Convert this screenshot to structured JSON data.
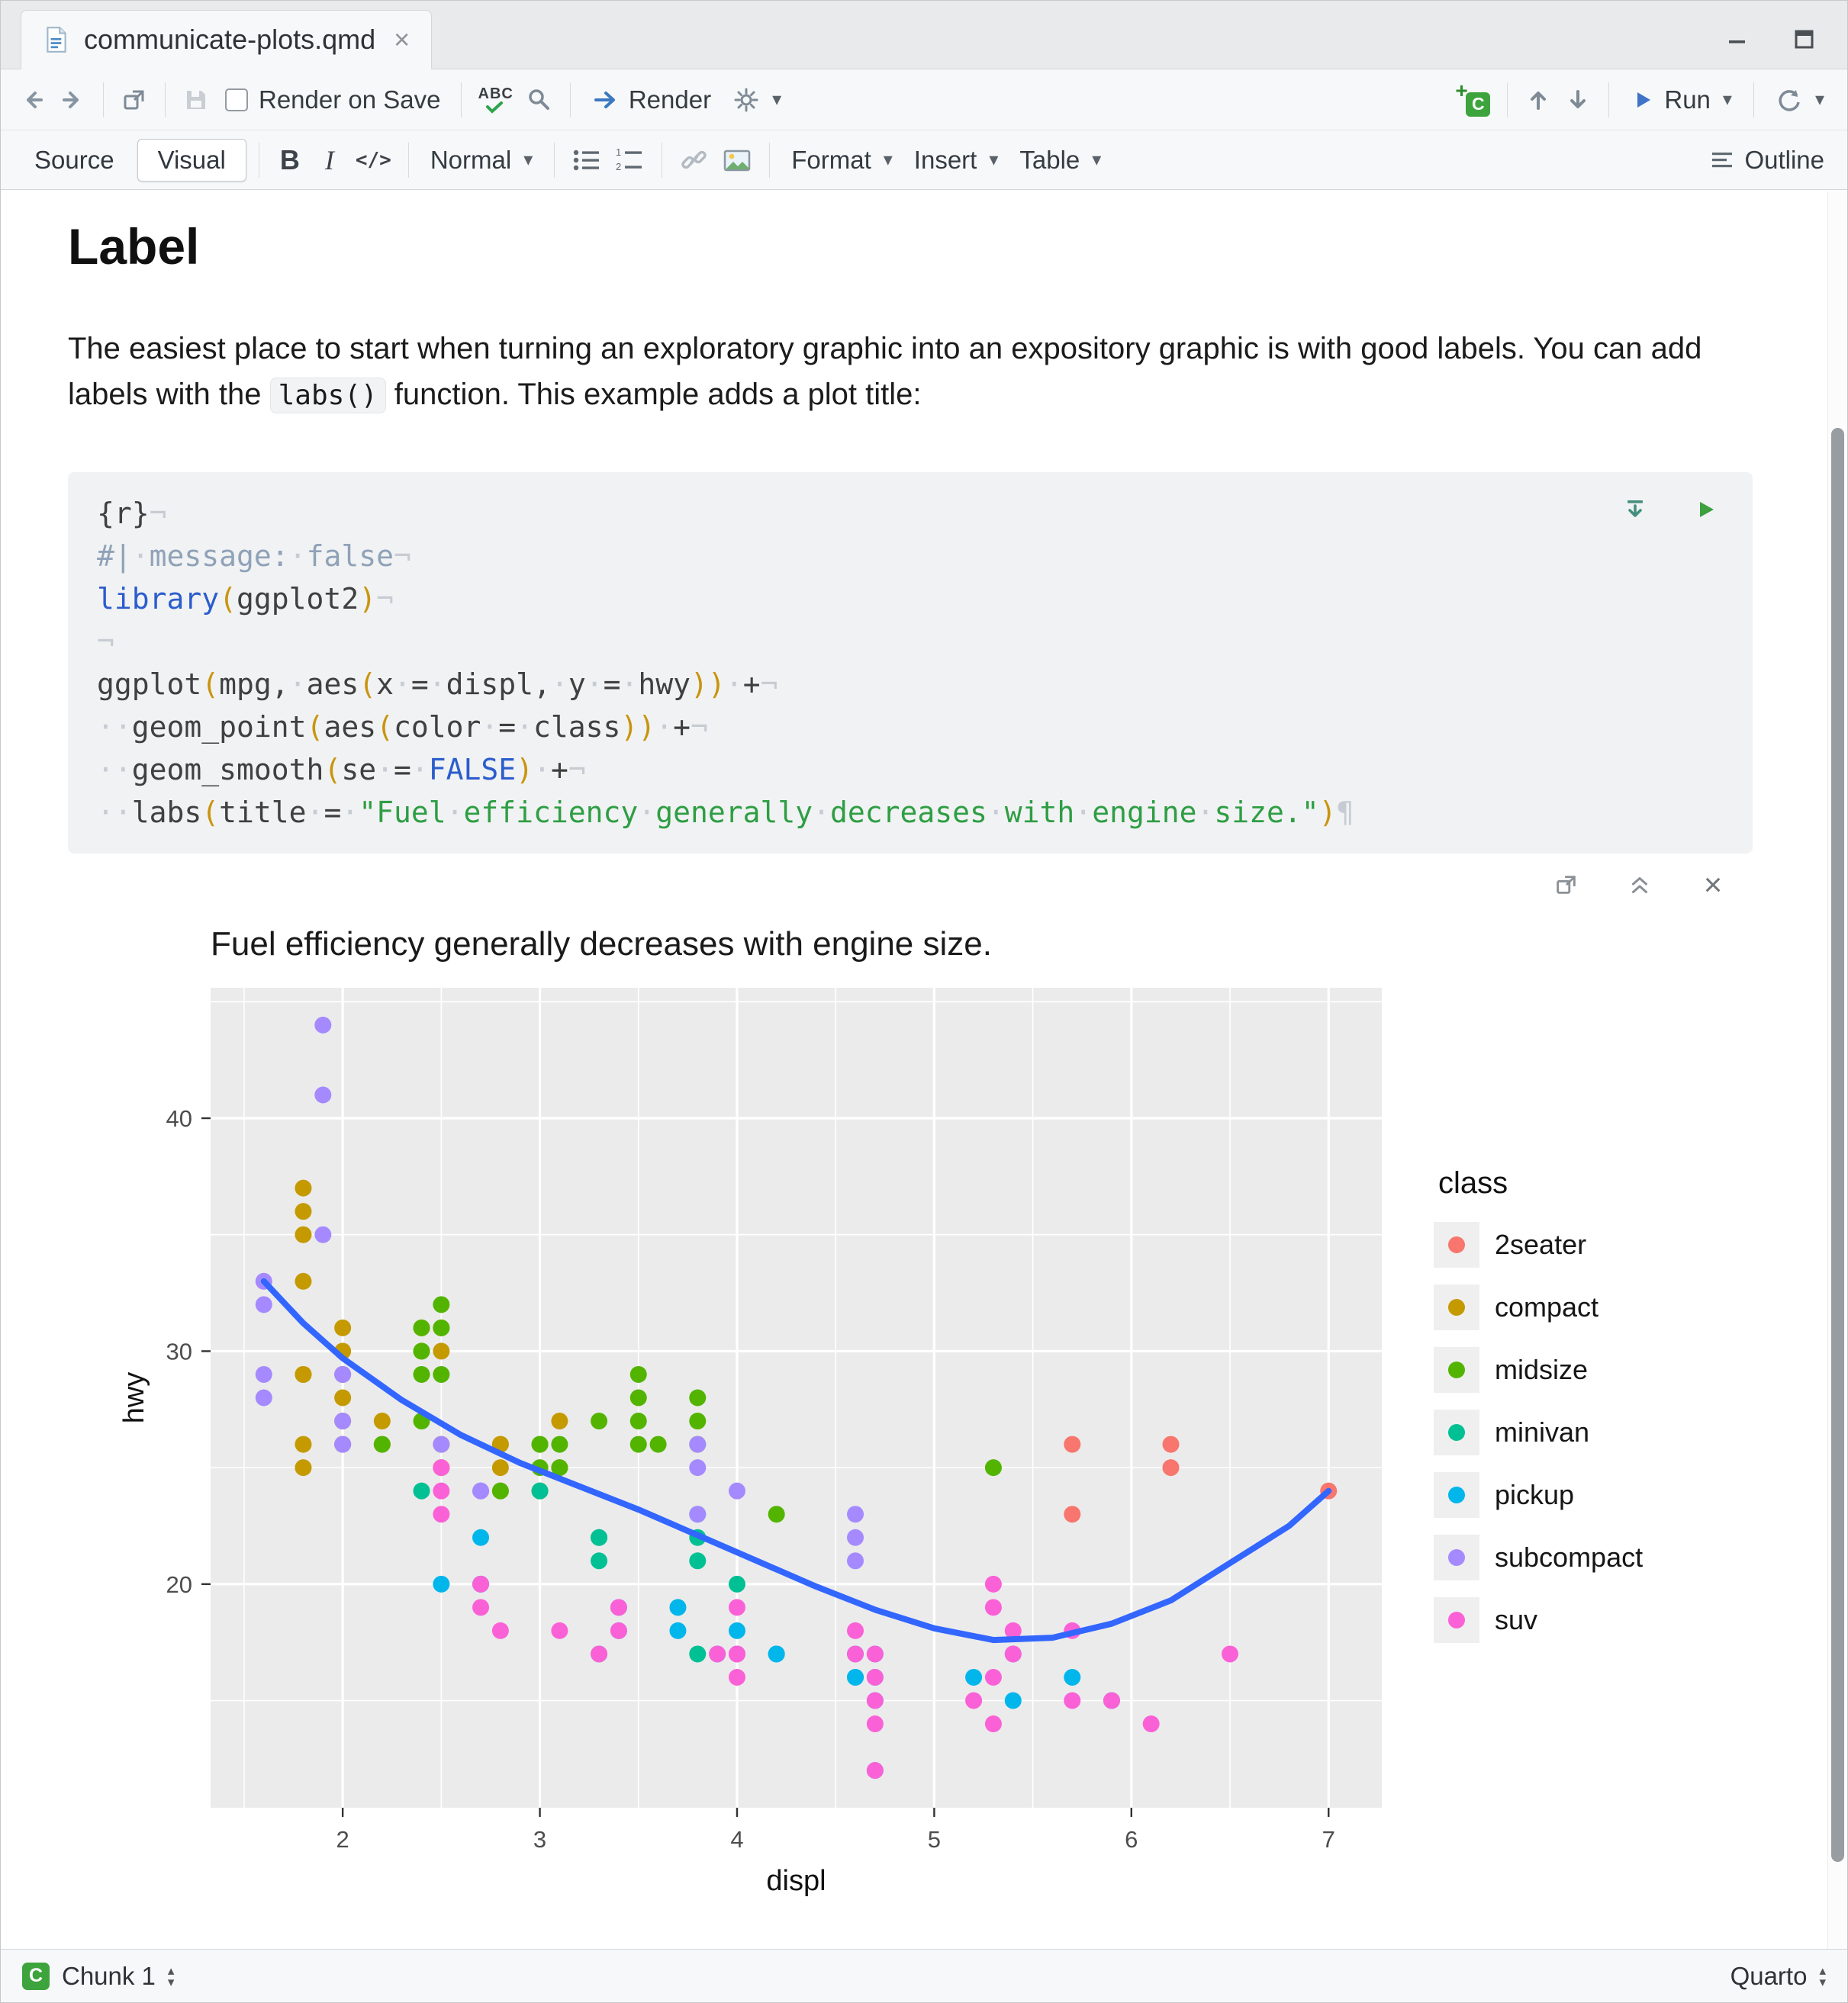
{
  "window": {
    "tab_title": "communicate-plots.qmd"
  },
  "icons": {
    "caret": "▾",
    "close": "×",
    "c_badge": "C",
    "plus_badge": "+",
    "spellcheck": "ABC",
    "up_small": "▴",
    "down_small": "▾"
  },
  "toolbar": {
    "render_on_save": "Render on Save",
    "render": "Render",
    "run": "Run"
  },
  "format_bar": {
    "source": "Source",
    "visual": "Visual",
    "bold": "B",
    "italic": "I",
    "code": "</>",
    "normal": "Normal",
    "format": "Format",
    "insert": "Insert",
    "table": "Table",
    "outline": "Outline"
  },
  "document": {
    "heading": "Label",
    "para_before": "The easiest place to start when turning an exploratory graphic into an expository graphic is with good labels. You can add labels with the ",
    "para_code": "labs()",
    "para_after": " function. This example adds a plot title:"
  },
  "code_chunk": {
    "lines": [
      [
        [
          "{r}",
          "p"
        ],
        [
          "¬",
          "m"
        ]
      ],
      [
        [
          "#|",
          "c"
        ],
        [
          "·",
          "w"
        ],
        [
          "message:",
          "c"
        ],
        [
          "·",
          "w"
        ],
        [
          "false",
          "c"
        ],
        [
          "¬",
          "m"
        ]
      ],
      [
        [
          "library",
          "k"
        ],
        [
          "(",
          "n"
        ],
        [
          "ggplot2",
          "p"
        ],
        [
          ")",
          "n"
        ],
        [
          "¬",
          "m"
        ]
      ],
      [
        [
          "¬",
          "m"
        ]
      ],
      [
        [
          "ggplot",
          "p"
        ],
        [
          "(",
          "n"
        ],
        [
          "mpg,",
          "p"
        ],
        [
          "·",
          "w"
        ],
        [
          "aes",
          "p"
        ],
        [
          "(",
          "n"
        ],
        [
          "x",
          "p"
        ],
        [
          "·",
          "w"
        ],
        [
          "=",
          "p"
        ],
        [
          "·",
          "w"
        ],
        [
          "displ,",
          "p"
        ],
        [
          "·",
          "w"
        ],
        [
          "y",
          "p"
        ],
        [
          "·",
          "w"
        ],
        [
          "=",
          "p"
        ],
        [
          "·",
          "w"
        ],
        [
          "hwy",
          "p"
        ],
        [
          "))",
          "n"
        ],
        [
          "·",
          "w"
        ],
        [
          "+",
          "p"
        ],
        [
          "¬",
          "m"
        ]
      ],
      [
        [
          "··",
          "w"
        ],
        [
          "geom_point",
          "p"
        ],
        [
          "(",
          "n"
        ],
        [
          "aes",
          "p"
        ],
        [
          "(",
          "n"
        ],
        [
          "color",
          "p"
        ],
        [
          "·",
          "w"
        ],
        [
          "=",
          "p"
        ],
        [
          "·",
          "w"
        ],
        [
          "class",
          "p"
        ],
        [
          "))",
          "n"
        ],
        [
          "·",
          "w"
        ],
        [
          "+",
          "p"
        ],
        [
          "¬",
          "m"
        ]
      ],
      [
        [
          "··",
          "w"
        ],
        [
          "geom_smooth",
          "p"
        ],
        [
          "(",
          "n"
        ],
        [
          "se",
          "p"
        ],
        [
          "·",
          "w"
        ],
        [
          "=",
          "p"
        ],
        [
          "·",
          "w"
        ],
        [
          "FALSE",
          "k"
        ],
        [
          ")",
          "n"
        ],
        [
          "·",
          "w"
        ],
        [
          "+",
          "p"
        ],
        [
          "¬",
          "m"
        ]
      ],
      [
        [
          "··",
          "w"
        ],
        [
          "labs",
          "p"
        ],
        [
          "(",
          "n"
        ],
        [
          "title",
          "p"
        ],
        [
          "·",
          "w"
        ],
        [
          "=",
          "p"
        ],
        [
          "·",
          "w"
        ],
        [
          "\"Fuel",
          "s"
        ],
        [
          "·",
          "w"
        ],
        [
          "efficiency",
          "s"
        ],
        [
          "·",
          "w"
        ],
        [
          "generally",
          "s"
        ],
        [
          "·",
          "w"
        ],
        [
          "decreases",
          "s"
        ],
        [
          "·",
          "w"
        ],
        [
          "with",
          "s"
        ],
        [
          "·",
          "w"
        ],
        [
          "engine",
          "s"
        ],
        [
          "·",
          "w"
        ],
        [
          "size.\"",
          "s"
        ],
        [
          ")",
          "n"
        ],
        [
          "¶",
          "m"
        ]
      ]
    ]
  },
  "chart_data": {
    "type": "scatter",
    "title": "Fuel efficiency generally decreases with engine size.",
    "xlabel": "displ",
    "ylabel": "hwy",
    "xlim": [
      1.33,
      7.27
    ],
    "ylim": [
      10.4,
      45.6
    ],
    "x_ticks": [
      2,
      3,
      4,
      5,
      6,
      7
    ],
    "y_ticks": [
      20,
      30,
      40
    ],
    "x_minor": [
      1.5,
      2.5,
      3.5,
      4.5,
      5.5,
      6.5
    ],
    "y_minor": [
      15,
      25,
      35,
      45
    ],
    "panel_bg": "#EBEBEB",
    "grid_color": "#FFFFFF",
    "tick_label_color": "#4D4D4D",
    "legend_title": "class",
    "smooth": {
      "name": "loess fit",
      "color": "#3366FF",
      "points": [
        [
          1.6,
          33.0
        ],
        [
          1.8,
          31.2
        ],
        [
          2.0,
          29.7
        ],
        [
          2.3,
          27.9
        ],
        [
          2.6,
          26.4
        ],
        [
          2.9,
          25.2
        ],
        [
          3.2,
          24.2
        ],
        [
          3.5,
          23.2
        ],
        [
          3.8,
          22.1
        ],
        [
          4.1,
          21.0
        ],
        [
          4.4,
          19.9
        ],
        [
          4.7,
          18.9
        ],
        [
          5.0,
          18.1
        ],
        [
          5.3,
          17.6
        ],
        [
          5.6,
          17.7
        ],
        [
          5.9,
          18.3
        ],
        [
          6.2,
          19.3
        ],
        [
          6.5,
          20.9
        ],
        [
          6.8,
          22.5
        ],
        [
          7.0,
          24.0
        ]
      ]
    },
    "series": [
      {
        "name": "2seater",
        "color": "#F8766D",
        "points": [
          [
            5.7,
            26
          ],
          [
            5.7,
            23
          ],
          [
            6.2,
            26
          ],
          [
            6.2,
            25
          ],
          [
            7.0,
            24
          ]
        ]
      },
      {
        "name": "compact",
        "color": "#C49A00",
        "points": [
          [
            1.8,
            29
          ],
          [
            1.8,
            29
          ],
          [
            2.0,
            31
          ],
          [
            2.0,
            30
          ],
          [
            2.8,
            26
          ],
          [
            2.8,
            26
          ],
          [
            3.1,
            27
          ],
          [
            1.8,
            26
          ],
          [
            1.8,
            25
          ],
          [
            2.0,
            28
          ],
          [
            2.0,
            27
          ],
          [
            2.8,
            25
          ],
          [
            3.1,
            25
          ],
          [
            2.2,
            26
          ],
          [
            2.2,
            27
          ],
          [
            2.5,
            25
          ],
          [
            2.5,
            26
          ],
          [
            1.8,
            33
          ],
          [
            1.8,
            35
          ],
          [
            1.8,
            36
          ],
          [
            1.8,
            37
          ],
          [
            2.0,
            29
          ],
          [
            2.0,
            26
          ],
          [
            2.8,
            24
          ],
          [
            2.4,
            30
          ],
          [
            2.4,
            31
          ],
          [
            2.5,
            30
          ],
          [
            2.5,
            31
          ]
        ]
      },
      {
        "name": "midsize",
        "color": "#53B400",
        "points": [
          [
            2.4,
            29
          ],
          [
            2.4,
            27
          ],
          [
            2.4,
            30
          ],
          [
            2.4,
            31
          ],
          [
            2.5,
            31
          ],
          [
            2.5,
            32
          ],
          [
            3.0,
            26
          ],
          [
            3.0,
            26
          ],
          [
            3.0,
            25
          ],
          [
            3.1,
            26
          ],
          [
            3.3,
            27
          ],
          [
            3.5,
            28
          ],
          [
            3.5,
            29
          ],
          [
            3.5,
            26
          ],
          [
            3.6,
            26
          ],
          [
            3.8,
            26
          ],
          [
            3.8,
            27
          ],
          [
            3.8,
            28
          ],
          [
            4.2,
            23
          ],
          [
            5.3,
            25
          ],
          [
            2.8,
            24
          ],
          [
            3.1,
            25
          ],
          [
            2.2,
            26
          ],
          [
            3.0,
            24
          ],
          [
            3.5,
            27
          ],
          [
            2.5,
            29
          ]
        ]
      },
      {
        "name": "minivan",
        "color": "#00C094",
        "points": [
          [
            2.4,
            24
          ],
          [
            3.0,
            24
          ],
          [
            3.3,
            22
          ],
          [
            3.3,
            22
          ],
          [
            3.3,
            21
          ],
          [
            3.8,
            23
          ],
          [
            3.8,
            22
          ],
          [
            3.8,
            21
          ],
          [
            4.0,
            20
          ],
          [
            3.3,
            17
          ],
          [
            3.8,
            17
          ]
        ]
      },
      {
        "name": "pickup",
        "color": "#00B6EB",
        "points": [
          [
            2.5,
            20
          ],
          [
            2.7,
            20
          ],
          [
            2.7,
            20
          ],
          [
            2.7,
            22
          ],
          [
            3.4,
            19
          ],
          [
            3.4,
            18
          ],
          [
            3.7,
            19
          ],
          [
            3.7,
            18
          ],
          [
            3.9,
            17
          ],
          [
            4.0,
            18
          ],
          [
            4.0,
            17
          ],
          [
            4.2,
            17
          ],
          [
            4.2,
            17
          ],
          [
            4.6,
            16
          ],
          [
            4.6,
            16
          ],
          [
            4.6,
            17
          ],
          [
            4.7,
            16
          ],
          [
            4.7,
            15
          ],
          [
            4.7,
            17
          ],
          [
            4.7,
            12
          ],
          [
            5.2,
            16
          ],
          [
            5.4,
            15
          ],
          [
            5.4,
            17
          ],
          [
            5.7,
            16
          ],
          [
            5.9,
            15
          ]
        ]
      },
      {
        "name": "subcompact",
        "color": "#A58AFF",
        "points": [
          [
            1.9,
            44
          ],
          [
            1.9,
            41
          ],
          [
            1.9,
            35
          ],
          [
            2.0,
            29
          ],
          [
            2.0,
            26
          ],
          [
            1.6,
            33
          ],
          [
            1.6,
            32
          ],
          [
            1.6,
            29
          ],
          [
            1.6,
            28
          ],
          [
            2.0,
            29
          ],
          [
            2.0,
            27
          ],
          [
            2.0,
            26
          ],
          [
            2.5,
            26
          ],
          [
            2.7,
            24
          ],
          [
            2.7,
            24
          ],
          [
            3.8,
            26
          ],
          [
            3.8,
            25
          ],
          [
            3.8,
            23
          ],
          [
            4.0,
            24
          ],
          [
            4.6,
            23
          ],
          [
            4.6,
            22
          ],
          [
            4.6,
            21
          ]
        ]
      },
      {
        "name": "suv",
        "color": "#FB61D7",
        "points": [
          [
            2.5,
            23
          ],
          [
            2.5,
            24
          ],
          [
            2.5,
            25
          ],
          [
            2.7,
            20
          ],
          [
            2.7,
            19
          ],
          [
            3.4,
            19
          ],
          [
            3.4,
            18
          ],
          [
            3.9,
            17
          ],
          [
            4.0,
            17
          ],
          [
            4.0,
            19
          ],
          [
            4.0,
            17
          ],
          [
            4.0,
            16
          ],
          [
            4.6,
            17
          ],
          [
            4.6,
            18
          ],
          [
            4.7,
            14
          ],
          [
            4.7,
            17
          ],
          [
            4.7,
            12
          ],
          [
            4.7,
            16
          ],
          [
            4.7,
            15
          ],
          [
            5.2,
            15
          ],
          [
            5.3,
            20
          ],
          [
            5.3,
            19
          ],
          [
            5.3,
            14
          ],
          [
            5.3,
            16
          ],
          [
            5.4,
            17
          ],
          [
            5.4,
            18
          ],
          [
            5.7,
            15
          ],
          [
            5.7,
            18
          ],
          [
            5.9,
            15
          ],
          [
            6.1,
            14
          ],
          [
            6.5,
            17
          ],
          [
            3.3,
            17
          ],
          [
            3.1,
            18
          ],
          [
            2.8,
            18
          ]
        ]
      }
    ]
  },
  "status_bar": {
    "chunk_icon": "C",
    "left_label": "Chunk 1",
    "right_label": "Quarto"
  }
}
